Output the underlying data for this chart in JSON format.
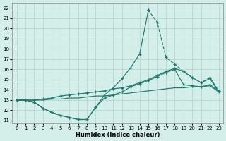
{
  "xlabel": "Humidex (Indice chaleur)",
  "xlim": [
    -0.5,
    23.5
  ],
  "ylim": [
    10.7,
    22.5
  ],
  "yticks": [
    11,
    12,
    13,
    14,
    15,
    16,
    17,
    18,
    19,
    20,
    21,
    22
  ],
  "xticks": [
    0,
    1,
    2,
    3,
    4,
    5,
    6,
    7,
    8,
    9,
    10,
    11,
    12,
    13,
    14,
    15,
    16,
    17,
    18,
    19,
    20,
    21,
    22,
    23
  ],
  "bg_color": "#d4eeea",
  "grid_color": "#b0d0cc",
  "line_color": "#1a7a6e",
  "peak_x": [
    0,
    1,
    2,
    3,
    4,
    5,
    6,
    7,
    8,
    9,
    10,
    11,
    12,
    13,
    14,
    15,
    16,
    17,
    18,
    19,
    20,
    21,
    22,
    23
  ],
  "peak_y": [
    13.0,
    13.0,
    12.8,
    12.2,
    11.8,
    11.5,
    11.3,
    11.1,
    11.1,
    12.3,
    13.5,
    14.2,
    15.1,
    16.2,
    17.5,
    21.8,
    20.6,
    17.2,
    16.5,
    15.8,
    15.2,
    14.7,
    15.2,
    13.9
  ],
  "upper_x": [
    0,
    1,
    2,
    3,
    4,
    5,
    6,
    7,
    8,
    9,
    10,
    11,
    12,
    13,
    14,
    15,
    16,
    17,
    18,
    19,
    20,
    21,
    22,
    23
  ],
  "upper_y": [
    13.0,
    13.0,
    13.0,
    13.1,
    13.2,
    13.4,
    13.5,
    13.6,
    13.7,
    13.8,
    13.9,
    14.1,
    14.2,
    14.4,
    14.7,
    15.0,
    15.4,
    15.8,
    16.1,
    15.8,
    15.2,
    14.7,
    15.1,
    13.8
  ],
  "mid_x": [
    0,
    1,
    2,
    3,
    4,
    5,
    6,
    7,
    8,
    9,
    10,
    11,
    12,
    13,
    14,
    15,
    16,
    17,
    18,
    19,
    20,
    21,
    22,
    23
  ],
  "mid_y": [
    13.0,
    13.0,
    13.0,
    13.0,
    13.1,
    13.1,
    13.2,
    13.2,
    13.3,
    13.4,
    13.4,
    13.5,
    13.6,
    13.7,
    13.8,
    13.9,
    14.0,
    14.1,
    14.2,
    14.2,
    14.3,
    14.3,
    14.4,
    13.8
  ],
  "low_x": [
    0,
    1,
    2,
    3,
    4,
    5,
    6,
    7,
    8,
    9,
    10,
    11,
    12,
    13,
    14,
    15,
    16,
    17,
    18,
    19,
    20,
    21,
    22,
    23
  ],
  "low_y": [
    13.0,
    13.0,
    12.8,
    12.2,
    11.8,
    11.5,
    11.3,
    11.1,
    11.1,
    12.3,
    13.2,
    13.5,
    13.8,
    14.3,
    14.6,
    14.9,
    15.3,
    15.7,
    16.0,
    14.5,
    14.4,
    14.3,
    14.5,
    13.9
  ],
  "dashed_x_start": 15,
  "dashed_x_end": 23
}
